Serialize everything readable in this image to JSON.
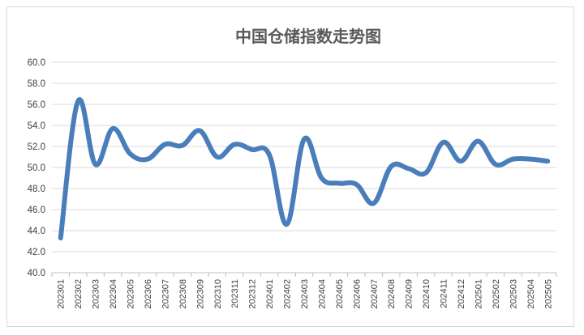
{
  "chart_data": {
    "type": "line",
    "title": "中国仓储指数走势图",
    "xlabel": "",
    "ylabel": "",
    "ylim": [
      40.0,
      60.0
    ],
    "yticks": [
      "40.0",
      "42.0",
      "44.0",
      "46.0",
      "48.0",
      "50.0",
      "52.0",
      "54.0",
      "56.0",
      "58.0",
      "60.0"
    ],
    "grid": true,
    "legend": "none",
    "line_color": "#4a7ebb",
    "categories": [
      "202301",
      "202302",
      "202303",
      "202304",
      "202305",
      "202306",
      "202307",
      "202308",
      "202309",
      "202310",
      "202311",
      "202312",
      "202401",
      "202402",
      "202403",
      "202404",
      "202405",
      "202406",
      "202407",
      "202408",
      "202409",
      "202410",
      "202411",
      "202412",
      "202501",
      "202502",
      "202503",
      "202504",
      "202505"
    ],
    "series": [
      {
        "values": [
          43.3,
          56.3,
          50.3,
          53.7,
          51.3,
          50.8,
          52.2,
          52.1,
          53.5,
          51.0,
          52.2,
          51.7,
          51.2,
          44.6,
          52.7,
          49.0,
          48.5,
          48.4,
          46.6,
          50.1,
          49.9,
          49.5,
          52.4,
          50.6,
          52.5,
          50.3,
          50.8,
          50.8,
          50.6
        ]
      }
    ]
  }
}
